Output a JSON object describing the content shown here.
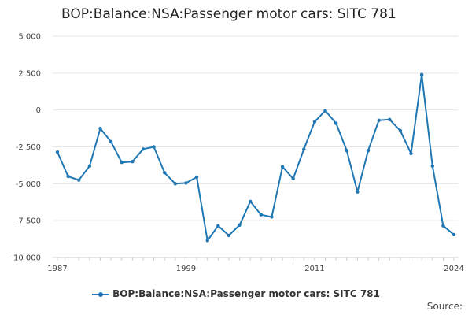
{
  "title": "BOP:Balance:NSA:Passenger motor cars: SITC 781",
  "source_label": "Source:",
  "colors": {
    "series": "#1f77b4",
    "grid": "#e6e6e6"
  },
  "chart_data": {
    "type": "line",
    "title": "BOP:Balance:NSA:Passenger motor cars: SITC 781",
    "xlabel": "",
    "ylabel": "",
    "grid": true,
    "legend_position": "bottom",
    "ylim": [
      -10000,
      5000
    ],
    "xlim": [
      1987,
      2024
    ],
    "y_ticks": [
      5000,
      2500,
      0,
      -2500,
      -5000,
      -7500,
      -10000
    ],
    "y_tick_labels": [
      "5 000",
      "2 500",
      "0",
      "-2 500",
      "-5 000",
      "-7 500",
      "-10 000"
    ],
    "x_ticks": [
      1987,
      1999,
      2011,
      2024
    ],
    "x_tick_labels": [
      "1987",
      "1999",
      "2011",
      "2024"
    ],
    "series": [
      {
        "name": "BOP:Balance:NSA:Passenger motor cars: SITC 781",
        "x": [
          1987,
          1988,
          1989,
          1990,
          1991,
          1992,
          1993,
          1994,
          1995,
          1996,
          1997,
          1998,
          1999,
          2000,
          2001,
          2002,
          2003,
          2004,
          2005,
          2006,
          2007,
          2008,
          2009,
          2010,
          2011,
          2012,
          2013,
          2014,
          2015,
          2016,
          2017,
          2018,
          2019,
          2020,
          2021,
          2022,
          2023,
          2024
        ],
        "values": [
          -2850,
          -4500,
          -4750,
          -3800,
          -1250,
          -2150,
          -3550,
          -3500,
          -2650,
          -2500,
          -4250,
          -5000,
          -4950,
          -4550,
          -8850,
          -7850,
          -8500,
          -7800,
          -6200,
          -7100,
          -7250,
          -3850,
          -4650,
          -2650,
          -800,
          -50,
          -900,
          -2750,
          -5550,
          -2750,
          -700,
          -650,
          -1400,
          -2950,
          2400,
          -3800,
          -7850,
          -8450
        ]
      }
    ]
  }
}
